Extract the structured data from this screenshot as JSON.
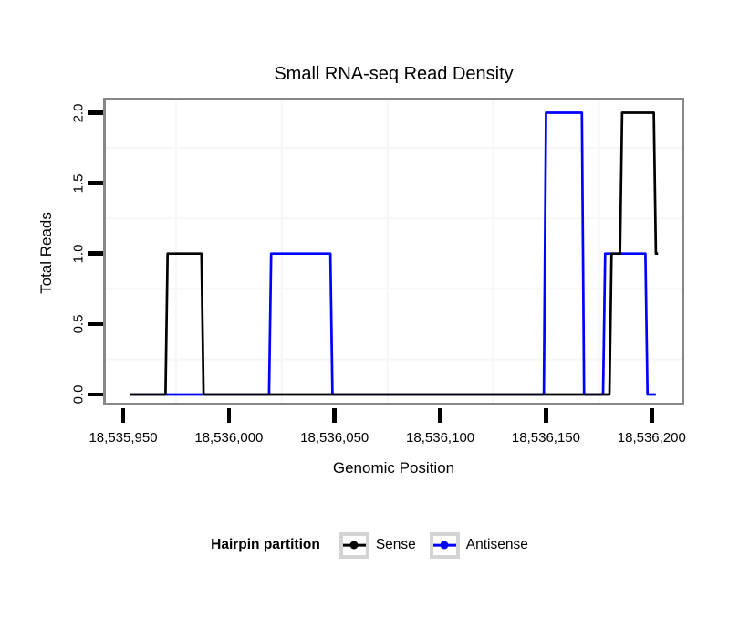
{
  "chart_data": {
    "type": "line",
    "subtype": "step-density",
    "title": "Small RNA-seq Read Density",
    "xlabel": "Genomic Position",
    "ylabel": "Total Reads",
    "xlim": [
      18535940.5,
      18536215.4
    ],
    "ylim": [
      -0.078,
      2.107
    ],
    "x_ticks": [
      18535950,
      18536000,
      18536050,
      18536100,
      18536150,
      18536200
    ],
    "x_tick_labels": [
      "18,535,950",
      "18,536,000",
      "18,536,050",
      "18,536,100",
      "18,536,150",
      "18,536,200"
    ],
    "y_ticks": [
      0.0,
      0.5,
      1.0,
      1.5,
      2.0
    ],
    "y_tick_labels": [
      "0.0",
      "0.5",
      "1.0",
      "1.5",
      "2.0"
    ],
    "grid": {
      "x_minor": [
        18535975,
        18536025,
        18536075,
        18536125,
        18536175
      ],
      "y_minor": [
        0.25,
        0.75,
        1.25,
        1.75
      ],
      "color": "#f7f7f7"
    },
    "panel_border_color": "#878787",
    "series": [
      {
        "name": "Antisense",
        "color": "#0000ff",
        "points": [
          [
            18535953,
            0
          ],
          [
            18536019,
            0
          ],
          [
            18536020,
            1
          ],
          [
            18536048,
            1
          ],
          [
            18536049,
            0
          ],
          [
            18536149,
            0
          ],
          [
            18536150,
            2
          ],
          [
            18536167,
            2
          ],
          [
            18536168,
            0
          ],
          [
            18536177,
            0
          ],
          [
            18536178,
            1
          ],
          [
            18536197,
            1
          ],
          [
            18536198,
            0
          ],
          [
            18536202,
            0
          ]
        ]
      },
      {
        "name": "Sense",
        "color": "#000000",
        "points": [
          [
            18535953,
            0
          ],
          [
            18535970,
            0
          ],
          [
            18535971,
            1
          ],
          [
            18535987,
            1
          ],
          [
            18535988,
            0
          ],
          [
            18536180,
            0
          ],
          [
            18536181,
            1
          ],
          [
            18536185,
            1
          ],
          [
            18536186,
            2
          ],
          [
            18536201,
            2
          ],
          [
            18536202,
            1
          ],
          [
            18536203,
            1
          ]
        ]
      }
    ],
    "legend": {
      "title": "Hairpin partition",
      "position": "bottom",
      "entries": [
        "Sense",
        "Antisense"
      ]
    }
  }
}
